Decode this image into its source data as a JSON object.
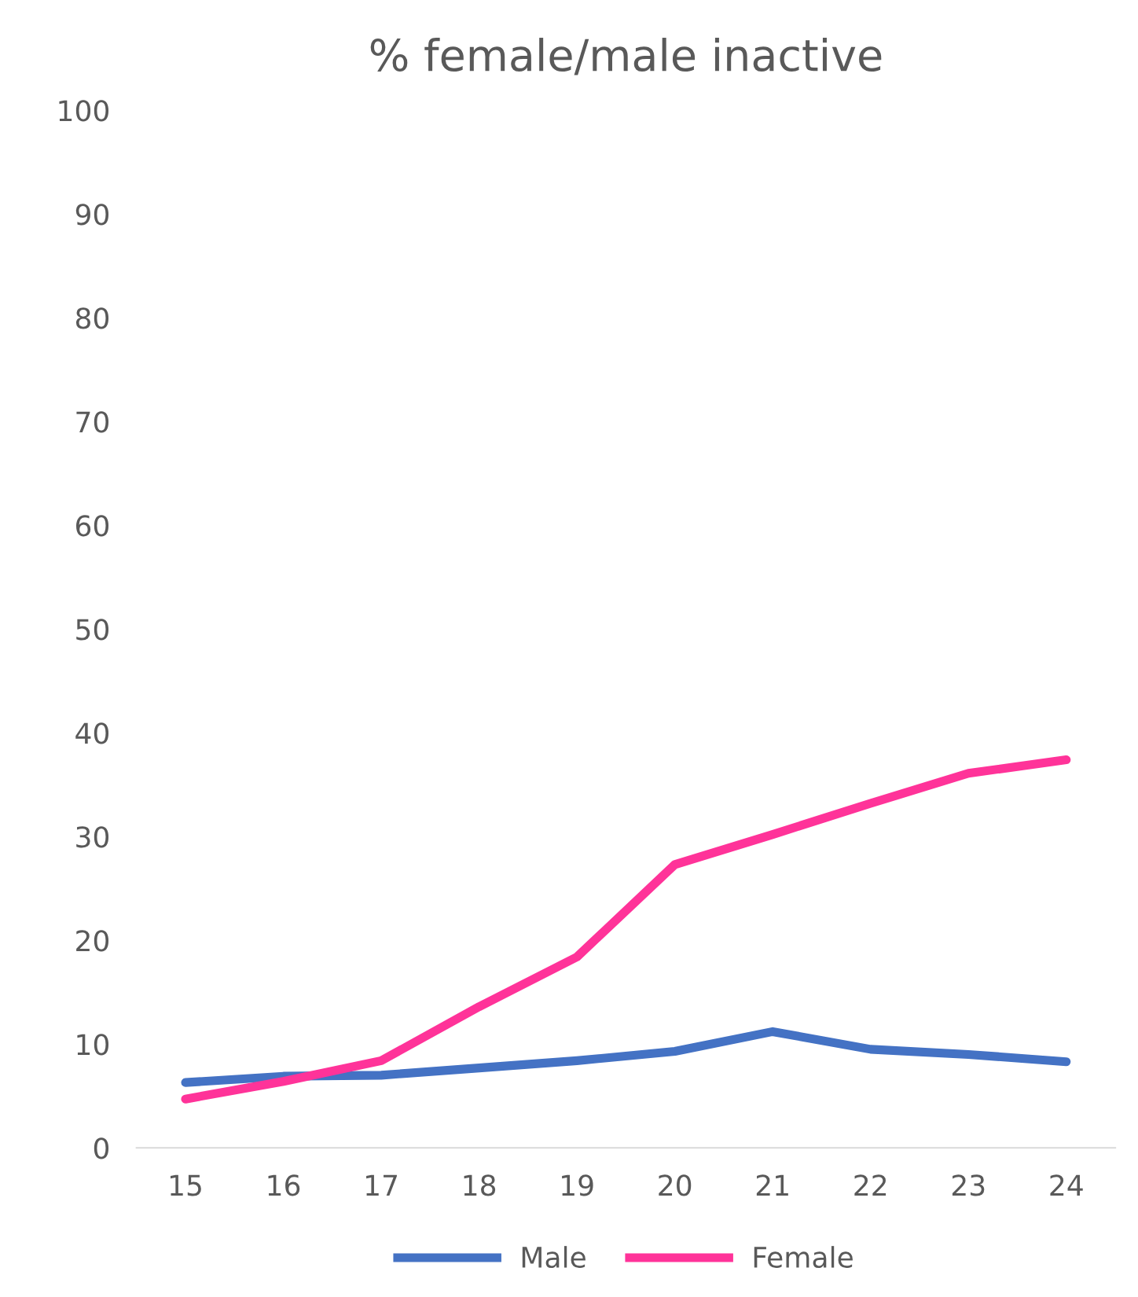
{
  "chart_data": {
    "type": "line",
    "title": "% female/male inactive",
    "categories": [
      "15",
      "16",
      "17",
      "18",
      "19",
      "20",
      "21",
      "22",
      "23",
      "24"
    ],
    "series": [
      {
        "name": "Male",
        "color": "#4472c4",
        "values": [
          6.3,
          6.9,
          7.0,
          7.7,
          8.4,
          9.3,
          11.2,
          9.5,
          9.0,
          8.3
        ]
      },
      {
        "name": "Female",
        "color": "#ff3399",
        "values": [
          4.7,
          6.4,
          8.4,
          13.6,
          18.4,
          27.3,
          30.2,
          33.2,
          36.1,
          37.4
        ]
      }
    ],
    "ylim": [
      0,
      100
    ],
    "yticks": [
      0,
      10,
      20,
      30,
      40,
      50,
      60,
      70,
      80,
      90,
      100
    ],
    "grid": false,
    "legend": "bottom",
    "marker": "none",
    "line_style": "solid"
  }
}
